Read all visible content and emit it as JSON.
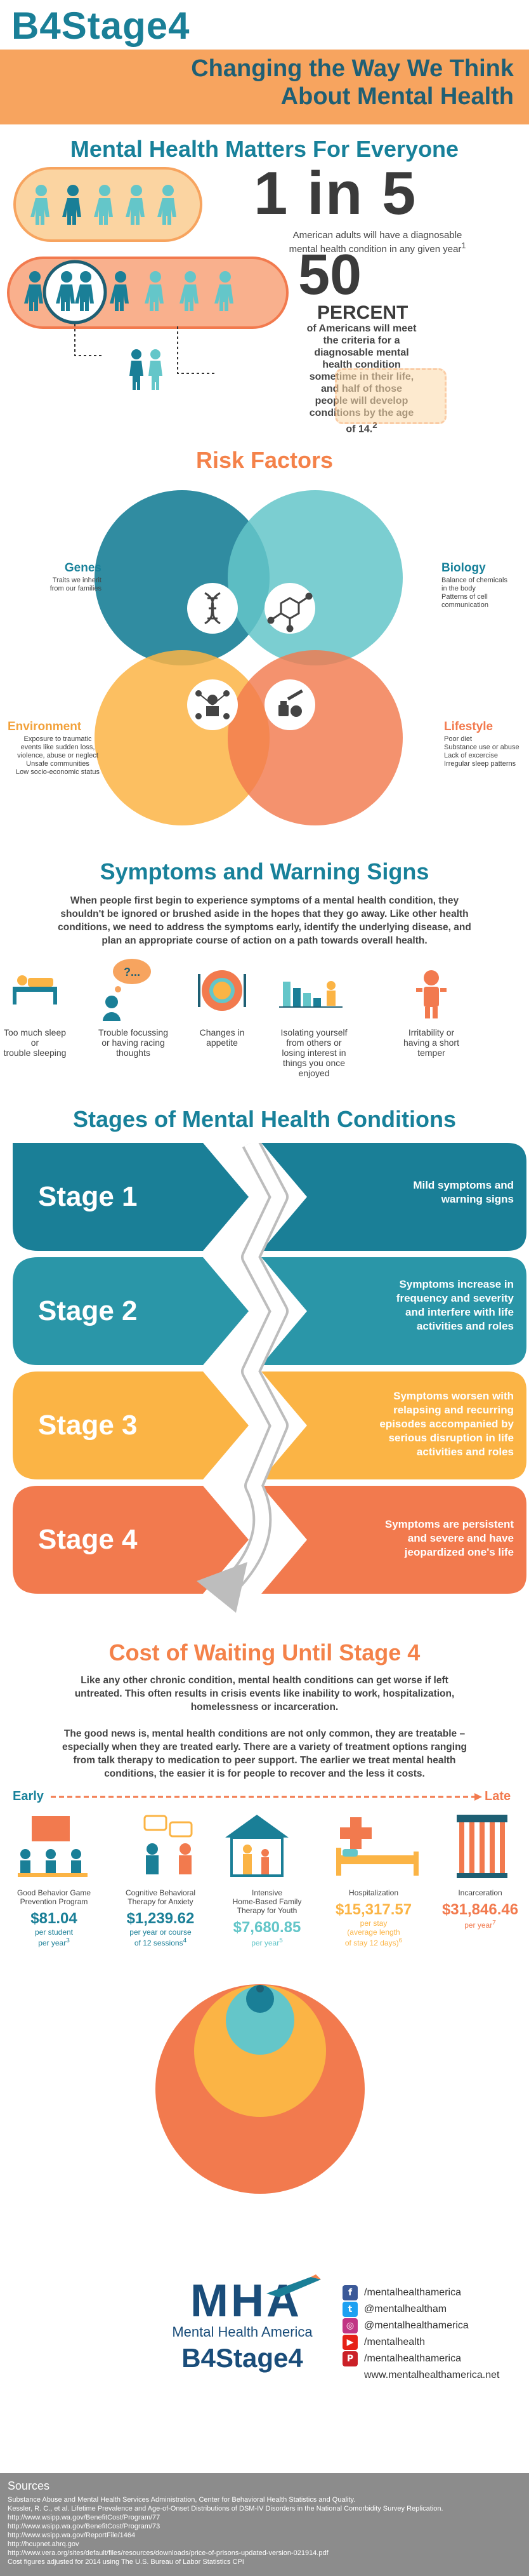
{
  "header": {
    "brand": "B4Stage4",
    "subtitle_line1": "Changing the Way We Think",
    "subtitle_line2": "About Mental Health"
  },
  "colors": {
    "teal": "#1a7f97",
    "teal_light": "#64c6c9",
    "orange": "#f4824a",
    "orange_banner": "#f7a45f",
    "yellow": "#fbb445",
    "dark": "#3b3b3b"
  },
  "matters": {
    "heading": "Mental Health Matters For Everyone",
    "stat1_big": "1 in 5",
    "stat1_text_line1": "American adults will have a diagnosable",
    "stat1_text_line2": "mental health condition in any given year",
    "stat1_sup": "1",
    "stat2_big": "50",
    "stat2_unit": "PERCENT",
    "stat2_lines": [
      "of Americans will meet",
      "the criteria for a",
      "diagnosable mental",
      "health condition",
      "sometime in their life,",
      "and half of those",
      "people will develop",
      "conditions by the age",
      "of 14."
    ],
    "stat2_sup": "2"
  },
  "risk": {
    "heading": "Risk Factors",
    "genes_title": "Genes",
    "genes_lines": [
      "Traits we inherit",
      "from our families"
    ],
    "biology_title": "Biology",
    "biology_lines": [
      "Balance of chemicals",
      "in the body",
      "Patterns of cell",
      "communication"
    ],
    "environment_title": "Environment",
    "environment_lines": [
      "Exposure to traumatic",
      "events like sudden loss,",
      "violence, abuse or neglect",
      "Unsafe communities",
      "Low socio-economic status"
    ],
    "lifestyle_title": "Lifestyle",
    "lifestyle_lines": [
      "Poor diet",
      "Substance use or abuse",
      "Lack of excercise",
      "Irregular sleep patterns"
    ],
    "icons": [
      "dna-icon",
      "molecule-icon",
      "people-network-icon",
      "food-syringe-icon"
    ]
  },
  "symptoms": {
    "heading": "Symptoms and Warning Signs",
    "intro_lines": [
      "When people first begin to experience symptoms of a mental health condition, they",
      "shouldn't be ignored or brushed aside in the hopes that they go away. Like other health",
      "conditions, we need to address the symptoms early, identify the underlying disease, and",
      "plan an appropriate course of action on a path towards overall health."
    ],
    "items": [
      {
        "lines": [
          "Too much sleep or",
          "trouble sleeping"
        ],
        "icon": "sleep-icon"
      },
      {
        "lines": [
          "Trouble focussing",
          "or having racing",
          "thoughts"
        ],
        "icon": "thought-bubble-icon",
        "bubble_text": "?..."
      },
      {
        "lines": [
          "Changes in",
          "appetite"
        ],
        "icon": "plate-icon"
      },
      {
        "lines": [
          "Isolating yourself",
          "from others or",
          "losing interest in",
          "things you once",
          "enjoyed"
        ],
        "icon": "isolation-icon"
      },
      {
        "lines": [
          "Irritability or",
          "having a short",
          "temper"
        ],
        "icon": "angry-icon"
      }
    ]
  },
  "stages": {
    "heading": "Stages of Mental Health Conditions",
    "items": [
      {
        "label": "Stage 1",
        "lines": [
          "Mild symptoms and",
          "warning signs"
        ],
        "color": "#1a7f97"
      },
      {
        "label": "Stage 2",
        "lines": [
          "Symptoms increase in",
          "frequency and severity",
          "and interfere with life",
          "activities and roles"
        ],
        "color": "#2a96a8"
      },
      {
        "label": "Stage 3",
        "lines": [
          "Symptoms worsen with",
          "relapsing and recurring",
          "episodes accompanied by",
          "serious disruption in life",
          "activities and roles"
        ],
        "color": "#fbb445"
      },
      {
        "label": "Stage 4",
        "lines": [
          "Symptoms are persistent",
          "and severe and have",
          "jeopardized one's life"
        ],
        "color": "#f27a4e"
      }
    ]
  },
  "cost": {
    "heading": "Cost of Waiting Until Stage 4",
    "para1_lines": [
      "Like any other chronic condition, mental health conditions can get worse if left",
      "untreated.  This often results in crisis events like inability to work, hospitalization,",
      "homelessness or incarceration."
    ],
    "para2_lines": [
      "The good news is, mental health conditions are not only common, they are treatable –",
      "especially when they are treated early.  There are a variety of treatment options ranging",
      "from talk therapy to medication to peer support.  The earlier we treat mental health",
      "conditions, the easier it is for people to recover and the less it costs."
    ],
    "early_label": "Early",
    "late_label": "Late",
    "items": [
      {
        "title_lines": [
          "Good Behavior Game",
          "Prevention Program"
        ],
        "price": "$81.04",
        "sub_lines": [
          "per student",
          "per year"
        ],
        "sup": "3",
        "icon": "classroom-icon",
        "price_color": "#1a7f97"
      },
      {
        "title_lines": [
          "Cognitive Behavioral",
          "Therapy for Anxiety"
        ],
        "price": "$1,239.62",
        "sub_lines": [
          "per year or course",
          "of 12 sessions"
        ],
        "sup": "4",
        "icon": "therapy-icon",
        "price_color": "#1a7f97"
      },
      {
        "title_lines": [
          "Intensive",
          "Home-Based Family",
          "Therapy for Youth"
        ],
        "price": "$7,680.85",
        "sub_lines": [
          "per year"
        ],
        "sup": "5",
        "icon": "home-family-icon",
        "price_color": "#64c6c9"
      },
      {
        "title_lines": [
          "Hospitalization"
        ],
        "price": "$15,317.57",
        "sub_lines": [
          "per stay",
          "(average length",
          "of stay 12 days)"
        ],
        "sup": "6",
        "icon": "hospital-bed-icon",
        "price_color": "#fbb445"
      },
      {
        "title_lines": [
          "Incarceration"
        ],
        "price": "$31,846.46",
        "sub_lines": [
          "per year"
        ],
        "sup": "7",
        "icon": "jail-icon",
        "price_color": "#f27a4e"
      }
    ]
  },
  "footer": {
    "logo_text": "MHA",
    "org_name": "Mental Health America",
    "brand": "B4Stage4",
    "social": [
      {
        "glyph": "f",
        "label": "/mentalhealthamerica",
        "color": "#3b5998",
        "icon": "facebook-icon"
      },
      {
        "glyph": "t",
        "label": "@mentalhealtham",
        "color": "#1da1f2",
        "icon": "twitter-icon"
      },
      {
        "glyph": "◎",
        "label": "@mentalhealthamerica",
        "color": "#c13584",
        "icon": "instagram-icon"
      },
      {
        "glyph": "▶",
        "label": "/mentalhealth",
        "color": "#e62117",
        "icon": "youtube-icon"
      },
      {
        "glyph": "P",
        "label": "/mentalhealthamerica",
        "color": "#cb2027",
        "icon": "pinterest-icon"
      }
    ],
    "website": "www.mentalhealthamerica.net"
  },
  "sources": {
    "title": "Sources",
    "lines": [
      "Substance Abuse and Mental Health Services Administration, Center for Behavioral Health Statistics and Quality.",
      "Kessler, R. C., et al. Lifetime Prevalence and Age-of-Onset Distributions of DSM-IV Disorders in the National Comorbidity Survey Replication.",
      "http://www.wsipp.wa.gov/BenefitCost/Program/77",
      "http://www.wsipp.wa.gov/BenefitCost/Program/73",
      "http://www.wsipp.wa.gov/ReportFile/1464",
      "http://hcupnet.ahrq.gov",
      "http://www.vera.org/sites/default/files/resources/downloads/price-of-prisons-updated-version-021914.pdf",
      "Cost figures adjusted for 2014 using The U.S. Bureau of Labor Statistics CPI"
    ]
  }
}
